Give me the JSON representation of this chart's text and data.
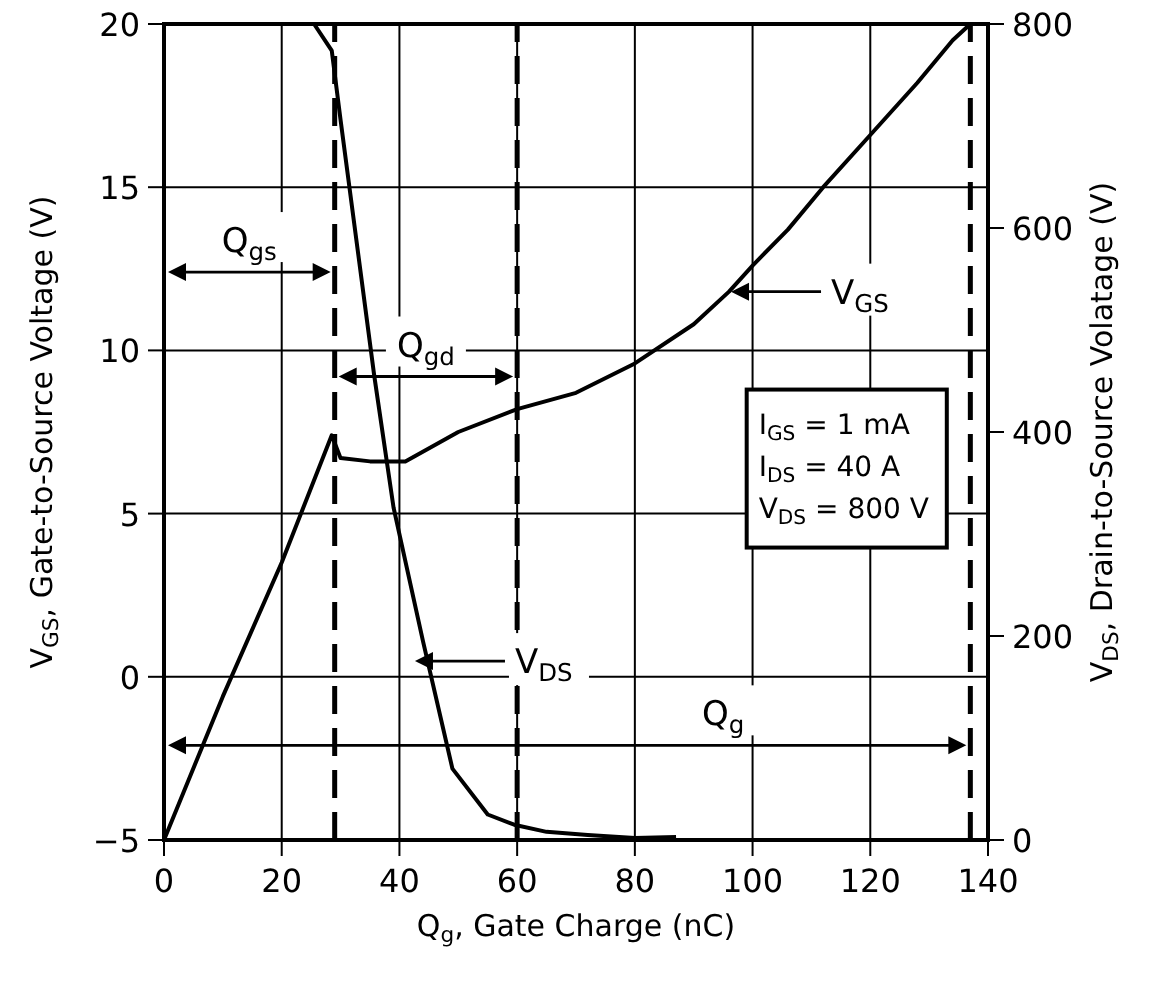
{
  "chart_data": {
    "type": "line",
    "xlabel": "Q$_{g}$, Gate Charge (nC)",
    "ylabel": "V$_{GS}$, Gate-to-Source Voltage (V)",
    "y2label": "V$_{DS}$, Drain-to-Source Volatage (V)",
    "series": [
      {
        "name": "V$_{GS}$",
        "color": "#000000",
        "x": [
          0,
          10,
          20,
          28.5,
          30,
          35,
          41,
          50,
          60,
          70,
          80,
          90,
          96,
          100,
          106,
          112,
          120,
          128,
          134,
          137
        ],
        "values": [
          -5,
          -0.6,
          3.5,
          7.4,
          6.7,
          6.6,
          6.6,
          7.5,
          8.2,
          8.7,
          9.6,
          10.8,
          11.8,
          12.6,
          13.7,
          15,
          16.6,
          18.2,
          19.5,
          20
        ]
      },
      {
        "name": "V$_{DS}$",
        "color": "#000000",
        "axis": "y2",
        "x": [
          0,
          10,
          20,
          25.5,
          28.5,
          30,
          35.7,
          39,
          44,
          49,
          55,
          59.5,
          65,
          72,
          80,
          87
        ],
        "values": [
          800,
          800,
          800,
          800,
          774,
          706,
          456,
          326,
          195,
          70,
          25,
          15,
          8,
          5,
          2,
          3
        ]
      }
    ],
    "xlim": [
      0,
      140
    ],
    "xticks": [
      0,
      20,
      40,
      60,
      80,
      100,
      120,
      140
    ],
    "ylim": [
      -5,
      20
    ],
    "yticks": [
      -5,
      0,
      5,
      10,
      15,
      20
    ],
    "y2lim": [
      0,
      800
    ],
    "y2ticks": [
      0,
      200,
      400,
      600,
      800
    ],
    "grid": true,
    "legend": "right",
    "line_style": "solid",
    "ref_lines": [
      {
        "axis": "x",
        "value": 29,
        "color": "#000000",
        "line_style": "dashed"
      },
      {
        "axis": "x",
        "value": 60,
        "color": "#000000",
        "line_style": "dashed"
      },
      {
        "axis": "x",
        "value": 137,
        "color": "#000000",
        "line_style": "dashed"
      }
    ],
    "annotations": [
      "Q$_{gs}$",
      "Q$_{gd}$",
      "Q$_{g}$",
      "I$_{GS}$ = 1 mA",
      "I$_{DS}$ = 40 A",
      "V$_{DS}$ = 800 V"
    ]
  }
}
